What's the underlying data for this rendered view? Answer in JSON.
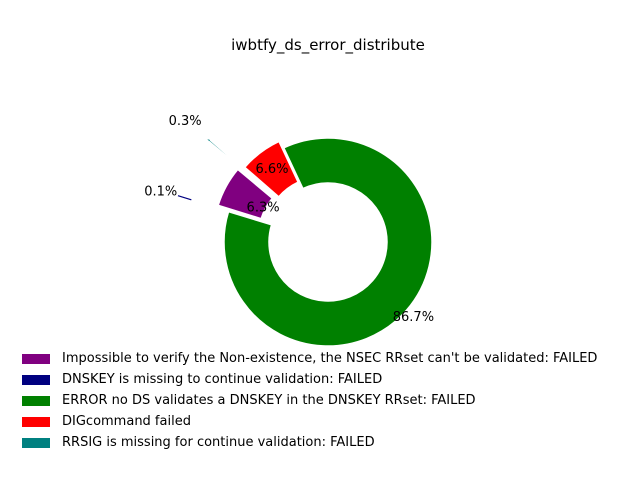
{
  "chart_data": {
    "type": "pie",
    "style": "donut",
    "title": "iwbtfy_ds_error_distribute",
    "legend_position": "bottom-left",
    "series": [
      {
        "name": "Impossible to verify the Non-existence, the NSEC RRset can't be validated: FAILED",
        "value": 6.3,
        "label": "6.3%",
        "color": "#800080"
      },
      {
        "name": "DNSKEY is missing to continue validation: FAILED",
        "value": 0.1,
        "label": "0.1%",
        "color": "#000080"
      },
      {
        "name": "ERROR no DS validates a DNSKEY in the DNSKEY RRset: FAILED",
        "value": 86.7,
        "label": "86.7%",
        "color": "#008000"
      },
      {
        "name": "DIGcommand failed",
        "value": 6.6,
        "label": "6.6%",
        "color": "#ff0000"
      },
      {
        "name": "RRSIG is missing for continue validation: FAILED",
        "value": 0.3,
        "label": "0.3%",
        "color": "#008080"
      }
    ]
  }
}
